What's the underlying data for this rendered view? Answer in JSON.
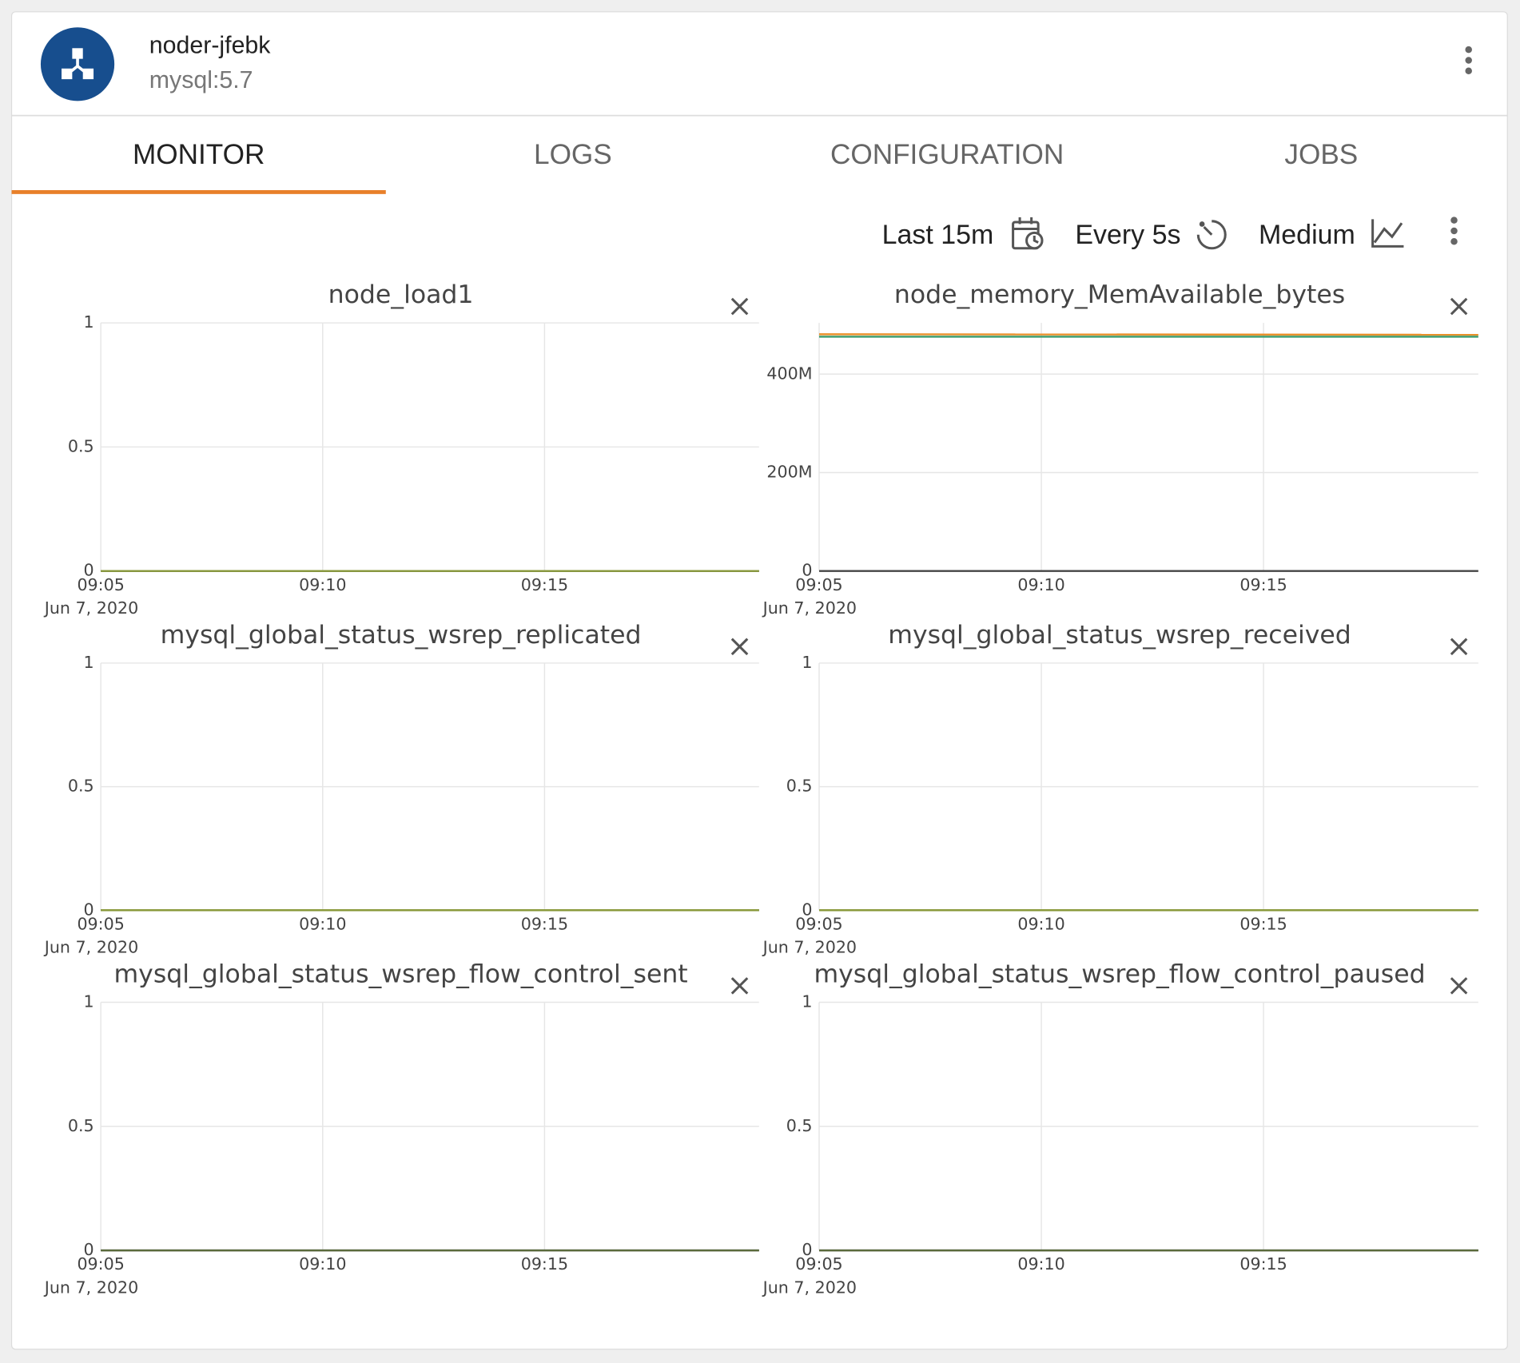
{
  "header": {
    "title": "noder-jfebk",
    "subtitle": "mysql:5.7"
  },
  "tabs": [
    "MONITOR",
    "LOGS",
    "CONFIGURATION",
    "JOBS"
  ],
  "toolbar": {
    "range": "Last 15m",
    "refresh": "Every 5s",
    "size": "Medium"
  },
  "charts": [
    {
      "type": "line",
      "title": "node_load1",
      "x_date_label": "Jun 7, 2020",
      "xlim": [
        "2020-06-07T09:05:00",
        "2020-06-07T09:19:50"
      ],
      "xticks": [
        {
          "value": "2020-06-07T09:05:00",
          "label": "09:05"
        },
        {
          "value": "2020-06-07T09:10:00",
          "label": "09:10"
        },
        {
          "value": "2020-06-07T09:15:00",
          "label": "09:15"
        }
      ],
      "ylim": [
        0,
        1
      ],
      "yticks": [
        0,
        0.5,
        1
      ],
      "grid": true,
      "series": [
        {
          "color": "#8a9a3c",
          "x": [
            "2020-06-07T09:05:00",
            "2020-06-07T09:19:50"
          ],
          "values": [
            0,
            0
          ]
        }
      ]
    },
    {
      "type": "line",
      "title": "node_memory_MemAvailable_bytes",
      "x_date_label": "Jun 7, 2020",
      "xlim": [
        "2020-06-07T09:05:00",
        "2020-06-07T09:19:50"
      ],
      "xticks": [
        {
          "value": "2020-06-07T09:05:00",
          "label": "09:05"
        },
        {
          "value": "2020-06-07T09:10:00",
          "label": "09:10"
        },
        {
          "value": "2020-06-07T09:15:00",
          "label": "09:15"
        }
      ],
      "ylim": [
        0,
        504000000
      ],
      "yticks": [
        0,
        {
          "value": 200000000,
          "label": "200M"
        },
        {
          "value": 400000000,
          "label": "400M"
        }
      ],
      "grid": true,
      "series": [
        {
          "color": "#e8902a",
          "x": [
            "2020-06-07T09:05:00",
            "2020-06-07T09:19:50"
          ],
          "values": [
            481000000,
            480000000
          ]
        },
        {
          "color": "#3a9a6a",
          "x": [
            "2020-06-07T09:05:00",
            "2020-06-07T09:19:50"
          ],
          "values": [
            476000000,
            476000000
          ]
        }
      ]
    },
    {
      "type": "line",
      "title": "mysql_global_status_wsrep_replicated",
      "x_date_label": "Jun 7, 2020",
      "xlim": [
        "2020-06-07T09:05:00",
        "2020-06-07T09:19:50"
      ],
      "xticks": [
        {
          "value": "2020-06-07T09:05:00",
          "label": "09:05"
        },
        {
          "value": "2020-06-07T09:10:00",
          "label": "09:10"
        },
        {
          "value": "2020-06-07T09:15:00",
          "label": "09:15"
        }
      ],
      "ylim": [
        0,
        1
      ],
      "yticks": [
        0,
        0.5,
        1
      ],
      "grid": true,
      "series": [
        {
          "color": "#8a9a3c",
          "x": [
            "2020-06-07T09:05:00",
            "2020-06-07T09:19:50"
          ],
          "values": [
            0,
            0
          ]
        }
      ]
    },
    {
      "type": "line",
      "title": "mysql_global_status_wsrep_received",
      "x_date_label": "Jun 7, 2020",
      "xlim": [
        "2020-06-07T09:05:00",
        "2020-06-07T09:19:50"
      ],
      "xticks": [
        {
          "value": "2020-06-07T09:05:00",
          "label": "09:05"
        },
        {
          "value": "2020-06-07T09:10:00",
          "label": "09:10"
        },
        {
          "value": "2020-06-07T09:15:00",
          "label": "09:15"
        }
      ],
      "ylim": [
        0,
        1
      ],
      "yticks": [
        0,
        0.5,
        1
      ],
      "grid": true,
      "series": [
        {
          "color": "#8a9a3c",
          "x": [
            "2020-06-07T09:05:00",
            "2020-06-07T09:19:50"
          ],
          "values": [
            0,
            0
          ]
        }
      ]
    },
    {
      "type": "line",
      "title": "mysql_global_status_wsrep_flow_control_sent",
      "x_date_label": "Jun 7, 2020",
      "xlim": [
        "2020-06-07T09:05:00",
        "2020-06-07T09:19:50"
      ],
      "xticks": [
        {
          "value": "2020-06-07T09:05:00",
          "label": "09:05"
        },
        {
          "value": "2020-06-07T09:10:00",
          "label": "09:10"
        },
        {
          "value": "2020-06-07T09:15:00",
          "label": "09:15"
        }
      ],
      "ylim": [
        0,
        1
      ],
      "yticks": [
        0,
        0.5,
        1
      ],
      "grid": true,
      "series": [
        {
          "color": "#5a6a3c",
          "x": [
            "2020-06-07T09:05:00",
            "2020-06-07T09:19:50"
          ],
          "values": [
            0,
            0
          ]
        }
      ]
    },
    {
      "type": "line",
      "title": "mysql_global_status_wsrep_flow_control_paused",
      "x_date_label": "Jun 7, 2020",
      "xlim": [
        "2020-06-07T09:05:00",
        "2020-06-07T09:19:50"
      ],
      "xticks": [
        {
          "value": "2020-06-07T09:05:00",
          "label": "09:05"
        },
        {
          "value": "2020-06-07T09:10:00",
          "label": "09:10"
        },
        {
          "value": "2020-06-07T09:15:00",
          "label": "09:15"
        }
      ],
      "ylim": [
        0,
        1
      ],
      "yticks": [
        0,
        0.5,
        1
      ],
      "grid": true,
      "series": [
        {
          "color": "#5a6a3c",
          "x": [
            "2020-06-07T09:05:00",
            "2020-06-07T09:19:50"
          ],
          "values": [
            0,
            0
          ]
        }
      ]
    }
  ]
}
